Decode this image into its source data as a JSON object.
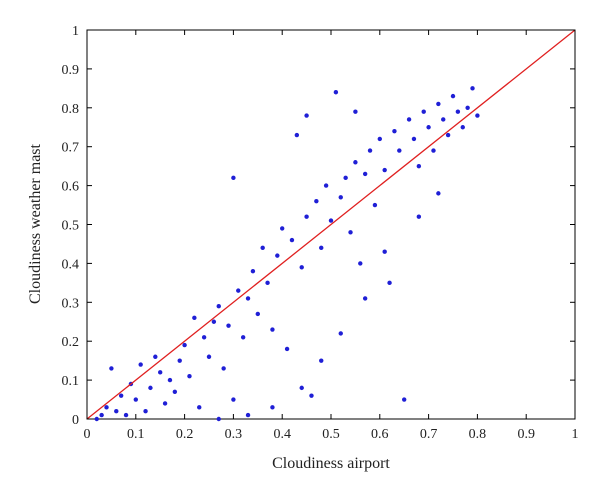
{
  "chart_data": {
    "type": "scatter",
    "title": "",
    "xlabel": "Cloudiness airport",
    "ylabel": "Cloudiness weather mast",
    "xlim": [
      0,
      1
    ],
    "ylim": [
      0,
      1
    ],
    "xticks": [
      "0",
      "0.1",
      "0.2",
      "0.3",
      "0.4",
      "0.5",
      "0.6",
      "0.7",
      "0.8",
      "0.9",
      "1"
    ],
    "yticks": [
      "0",
      "0.1",
      "0.2",
      "0.3",
      "0.4",
      "0.5",
      "0.6",
      "0.7",
      "0.8",
      "0.9",
      "1"
    ],
    "grid": false,
    "legend": "none",
    "point_color": "#1f1fd6",
    "line_color": "#e02020",
    "reference_line": {
      "x": [
        0,
        1
      ],
      "y": [
        0,
        1
      ]
    },
    "series": [
      {
        "points": [
          [
            0.02,
            0.0
          ],
          [
            0.03,
            0.01
          ],
          [
            0.04,
            0.03
          ],
          [
            0.05,
            0.13
          ],
          [
            0.06,
            0.02
          ],
          [
            0.07,
            0.06
          ],
          [
            0.08,
            0.01
          ],
          [
            0.09,
            0.09
          ],
          [
            0.1,
            0.05
          ],
          [
            0.11,
            0.14
          ],
          [
            0.12,
            0.02
          ],
          [
            0.13,
            0.08
          ],
          [
            0.14,
            0.16
          ],
          [
            0.15,
            0.12
          ],
          [
            0.16,
            0.04
          ],
          [
            0.17,
            0.1
          ],
          [
            0.18,
            0.07
          ],
          [
            0.19,
            0.15
          ],
          [
            0.2,
            0.19
          ],
          [
            0.21,
            0.11
          ],
          [
            0.22,
            0.26
          ],
          [
            0.23,
            0.03
          ],
          [
            0.24,
            0.21
          ],
          [
            0.25,
            0.16
          ],
          [
            0.26,
            0.25
          ],
          [
            0.27,
            0.29
          ],
          [
            0.28,
            0.13
          ],
          [
            0.29,
            0.24
          ],
          [
            0.3,
            0.62
          ],
          [
            0.3,
            0.05
          ],
          [
            0.31,
            0.33
          ],
          [
            0.32,
            0.21
          ],
          [
            0.33,
            0.31
          ],
          [
            0.34,
            0.38
          ],
          [
            0.35,
            0.27
          ],
          [
            0.36,
            0.44
          ],
          [
            0.37,
            0.35
          ],
          [
            0.38,
            0.23
          ],
          [
            0.39,
            0.42
          ],
          [
            0.4,
            0.49
          ],
          [
            0.41,
            0.18
          ],
          [
            0.42,
            0.46
          ],
          [
            0.43,
            0.73
          ],
          [
            0.44,
            0.39
          ],
          [
            0.45,
            0.52
          ],
          [
            0.45,
            0.78
          ],
          [
            0.46,
            0.06
          ],
          [
            0.47,
            0.56
          ],
          [
            0.48,
            0.44
          ],
          [
            0.49,
            0.6
          ],
          [
            0.5,
            0.51
          ],
          [
            0.51,
            0.84
          ],
          [
            0.52,
            0.57
          ],
          [
            0.53,
            0.62
          ],
          [
            0.54,
            0.48
          ],
          [
            0.55,
            0.66
          ],
          [
            0.55,
            0.79
          ],
          [
            0.56,
            0.4
          ],
          [
            0.57,
            0.63
          ],
          [
            0.58,
            0.69
          ],
          [
            0.59,
            0.55
          ],
          [
            0.6,
            0.72
          ],
          [
            0.61,
            0.64
          ],
          [
            0.62,
            0.35
          ],
          [
            0.63,
            0.74
          ],
          [
            0.64,
            0.69
          ],
          [
            0.65,
            0.05
          ],
          [
            0.66,
            0.77
          ],
          [
            0.67,
            0.72
          ],
          [
            0.68,
            0.65
          ],
          [
            0.69,
            0.79
          ],
          [
            0.7,
            0.75
          ],
          [
            0.71,
            0.69
          ],
          [
            0.72,
            0.81
          ],
          [
            0.73,
            0.77
          ],
          [
            0.74,
            0.73
          ],
          [
            0.75,
            0.83
          ],
          [
            0.76,
            0.79
          ],
          [
            0.77,
            0.75
          ],
          [
            0.78,
            0.8
          ],
          [
            0.79,
            0.85
          ],
          [
            0.8,
            0.78
          ],
          [
            0.72,
            0.58
          ],
          [
            0.68,
            0.52
          ],
          [
            0.61,
            0.43
          ],
          [
            0.57,
            0.31
          ],
          [
            0.52,
            0.22
          ],
          [
            0.48,
            0.15
          ],
          [
            0.44,
            0.08
          ],
          [
            0.38,
            0.03
          ],
          [
            0.33,
            0.01
          ],
          [
            0.27,
            0.0
          ]
        ]
      }
    ]
  }
}
